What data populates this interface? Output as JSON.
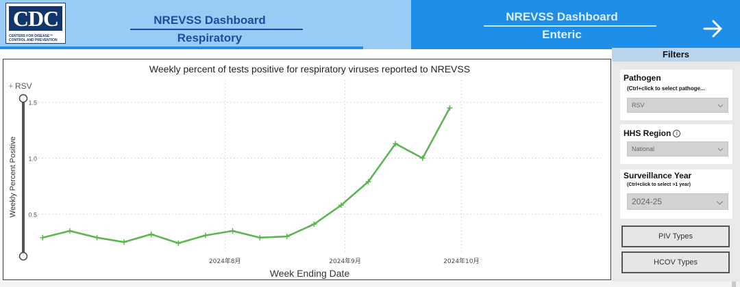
{
  "header": {
    "logo": {
      "text": "CDC",
      "sub_line1": "CENTERS FOR DISEASE™",
      "sub_line2": "CONTROL AND PREVENTION"
    },
    "nav_respiratory": {
      "title": "NREVSS Dashboard",
      "subtitle": "Respiratory"
    },
    "nav_enteric": {
      "title": "NREVSS Dashboard",
      "subtitle": "Enteric"
    },
    "next_icon": "arrow-right-icon"
  },
  "filters": {
    "title": "Filters",
    "pathogen": {
      "label": "Pathogen",
      "hint": "(Ctrl+click to select pathoge...",
      "value": "RSV"
    },
    "hhs_region": {
      "label": "HHS Region",
      "info_icon": "info-icon",
      "value": "National"
    },
    "surveillance_year": {
      "label": "Surveillance Year",
      "hint": "(Ctrl+click to select >1 year)",
      "value": "2024-25"
    },
    "buttons": {
      "piv": "PIV Types",
      "hcov": "HCOV Types"
    }
  },
  "chart_data": {
    "type": "line",
    "title": "Weekly percent of tests positive for respiratory viruses reported to NREVSS",
    "xlabel": "Week Ending Date",
    "ylabel": "Weekly Percent Positive",
    "legend": {
      "position": "top-left",
      "entries": [
        "RSV"
      ]
    },
    "grid": true,
    "ylim": [
      0.16,
      1.7
    ],
    "xlim": [
      "2024-06-13",
      "2024-11-06"
    ],
    "x_ticks": [
      {
        "date": "2024-08-01",
        "label": "2024年8月"
      },
      {
        "date": "2024-09-01",
        "label": "2024年9月"
      },
      {
        "date": "2024-10-01",
        "label": "2024年10月"
      }
    ],
    "y_ticks": [
      0.5,
      1.0,
      1.5
    ],
    "y_tick_labels": [
      "0.5",
      "1.0",
      "1.5"
    ],
    "series": [
      {
        "name": "RSV",
        "color": "#5bb550",
        "points": [
          {
            "x": "2024-06-15",
            "y": 0.29
          },
          {
            "x": "2024-06-22",
            "y": 0.35
          },
          {
            "x": "2024-06-29",
            "y": 0.29
          },
          {
            "x": "2024-07-06",
            "y": 0.25
          },
          {
            "x": "2024-07-13",
            "y": 0.32
          },
          {
            "x": "2024-07-20",
            "y": 0.24
          },
          {
            "x": "2024-07-27",
            "y": 0.31
          },
          {
            "x": "2024-08-03",
            "y": 0.35
          },
          {
            "x": "2024-08-10",
            "y": 0.29
          },
          {
            "x": "2024-08-17",
            "y": 0.3
          },
          {
            "x": "2024-08-24",
            "y": 0.41
          },
          {
            "x": "2024-08-31",
            "y": 0.58
          },
          {
            "x": "2024-09-07",
            "y": 0.79
          },
          {
            "x": "2024-09-14",
            "y": 1.13
          },
          {
            "x": "2024-09-21",
            "y": 1.0
          },
          {
            "x": "2024-09-28",
            "y": 1.45
          }
        ]
      }
    ]
  }
}
